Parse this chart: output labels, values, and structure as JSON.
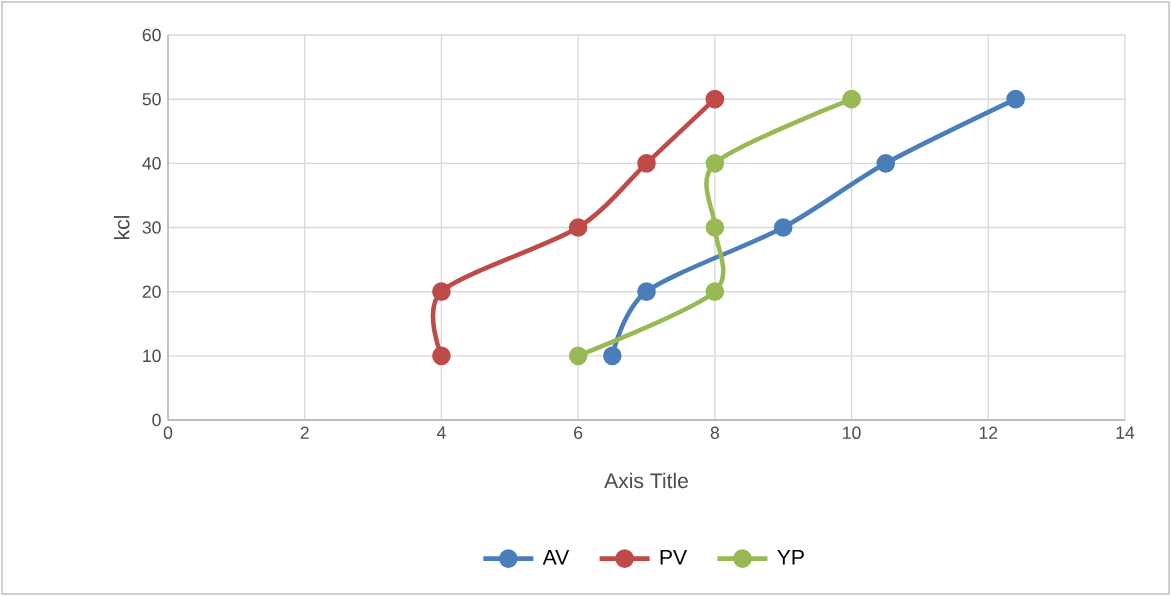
{
  "chart_data": {
    "type": "line",
    "xlabel": "Axis Title",
    "ylabel": "kcl",
    "series": [
      {
        "name": "AV",
        "color": "#4a7ebb",
        "x": [
          6.5,
          7,
          9,
          10.5,
          12.4
        ],
        "values": [
          10,
          20,
          30,
          40,
          50
        ]
      },
      {
        "name": "PV",
        "color": "#be4b48",
        "x": [
          4,
          4,
          6,
          7,
          8
        ],
        "values": [
          10,
          20,
          30,
          40,
          50
        ]
      },
      {
        "name": "YP",
        "color": "#98b954",
        "x": [
          6,
          8,
          8,
          8,
          10
        ],
        "values": [
          10,
          20,
          30,
          40,
          50
        ]
      }
    ],
    "xlim": [
      0,
      14
    ],
    "xticks": [
      0,
      2,
      4,
      6,
      8,
      10,
      12,
      14
    ],
    "ylim": [
      0,
      60
    ],
    "yticks": [
      0,
      10,
      20,
      30,
      40,
      50,
      60
    ],
    "grid": true,
    "legend": "bottom",
    "marker": "circle",
    "line_style": "solid"
  }
}
